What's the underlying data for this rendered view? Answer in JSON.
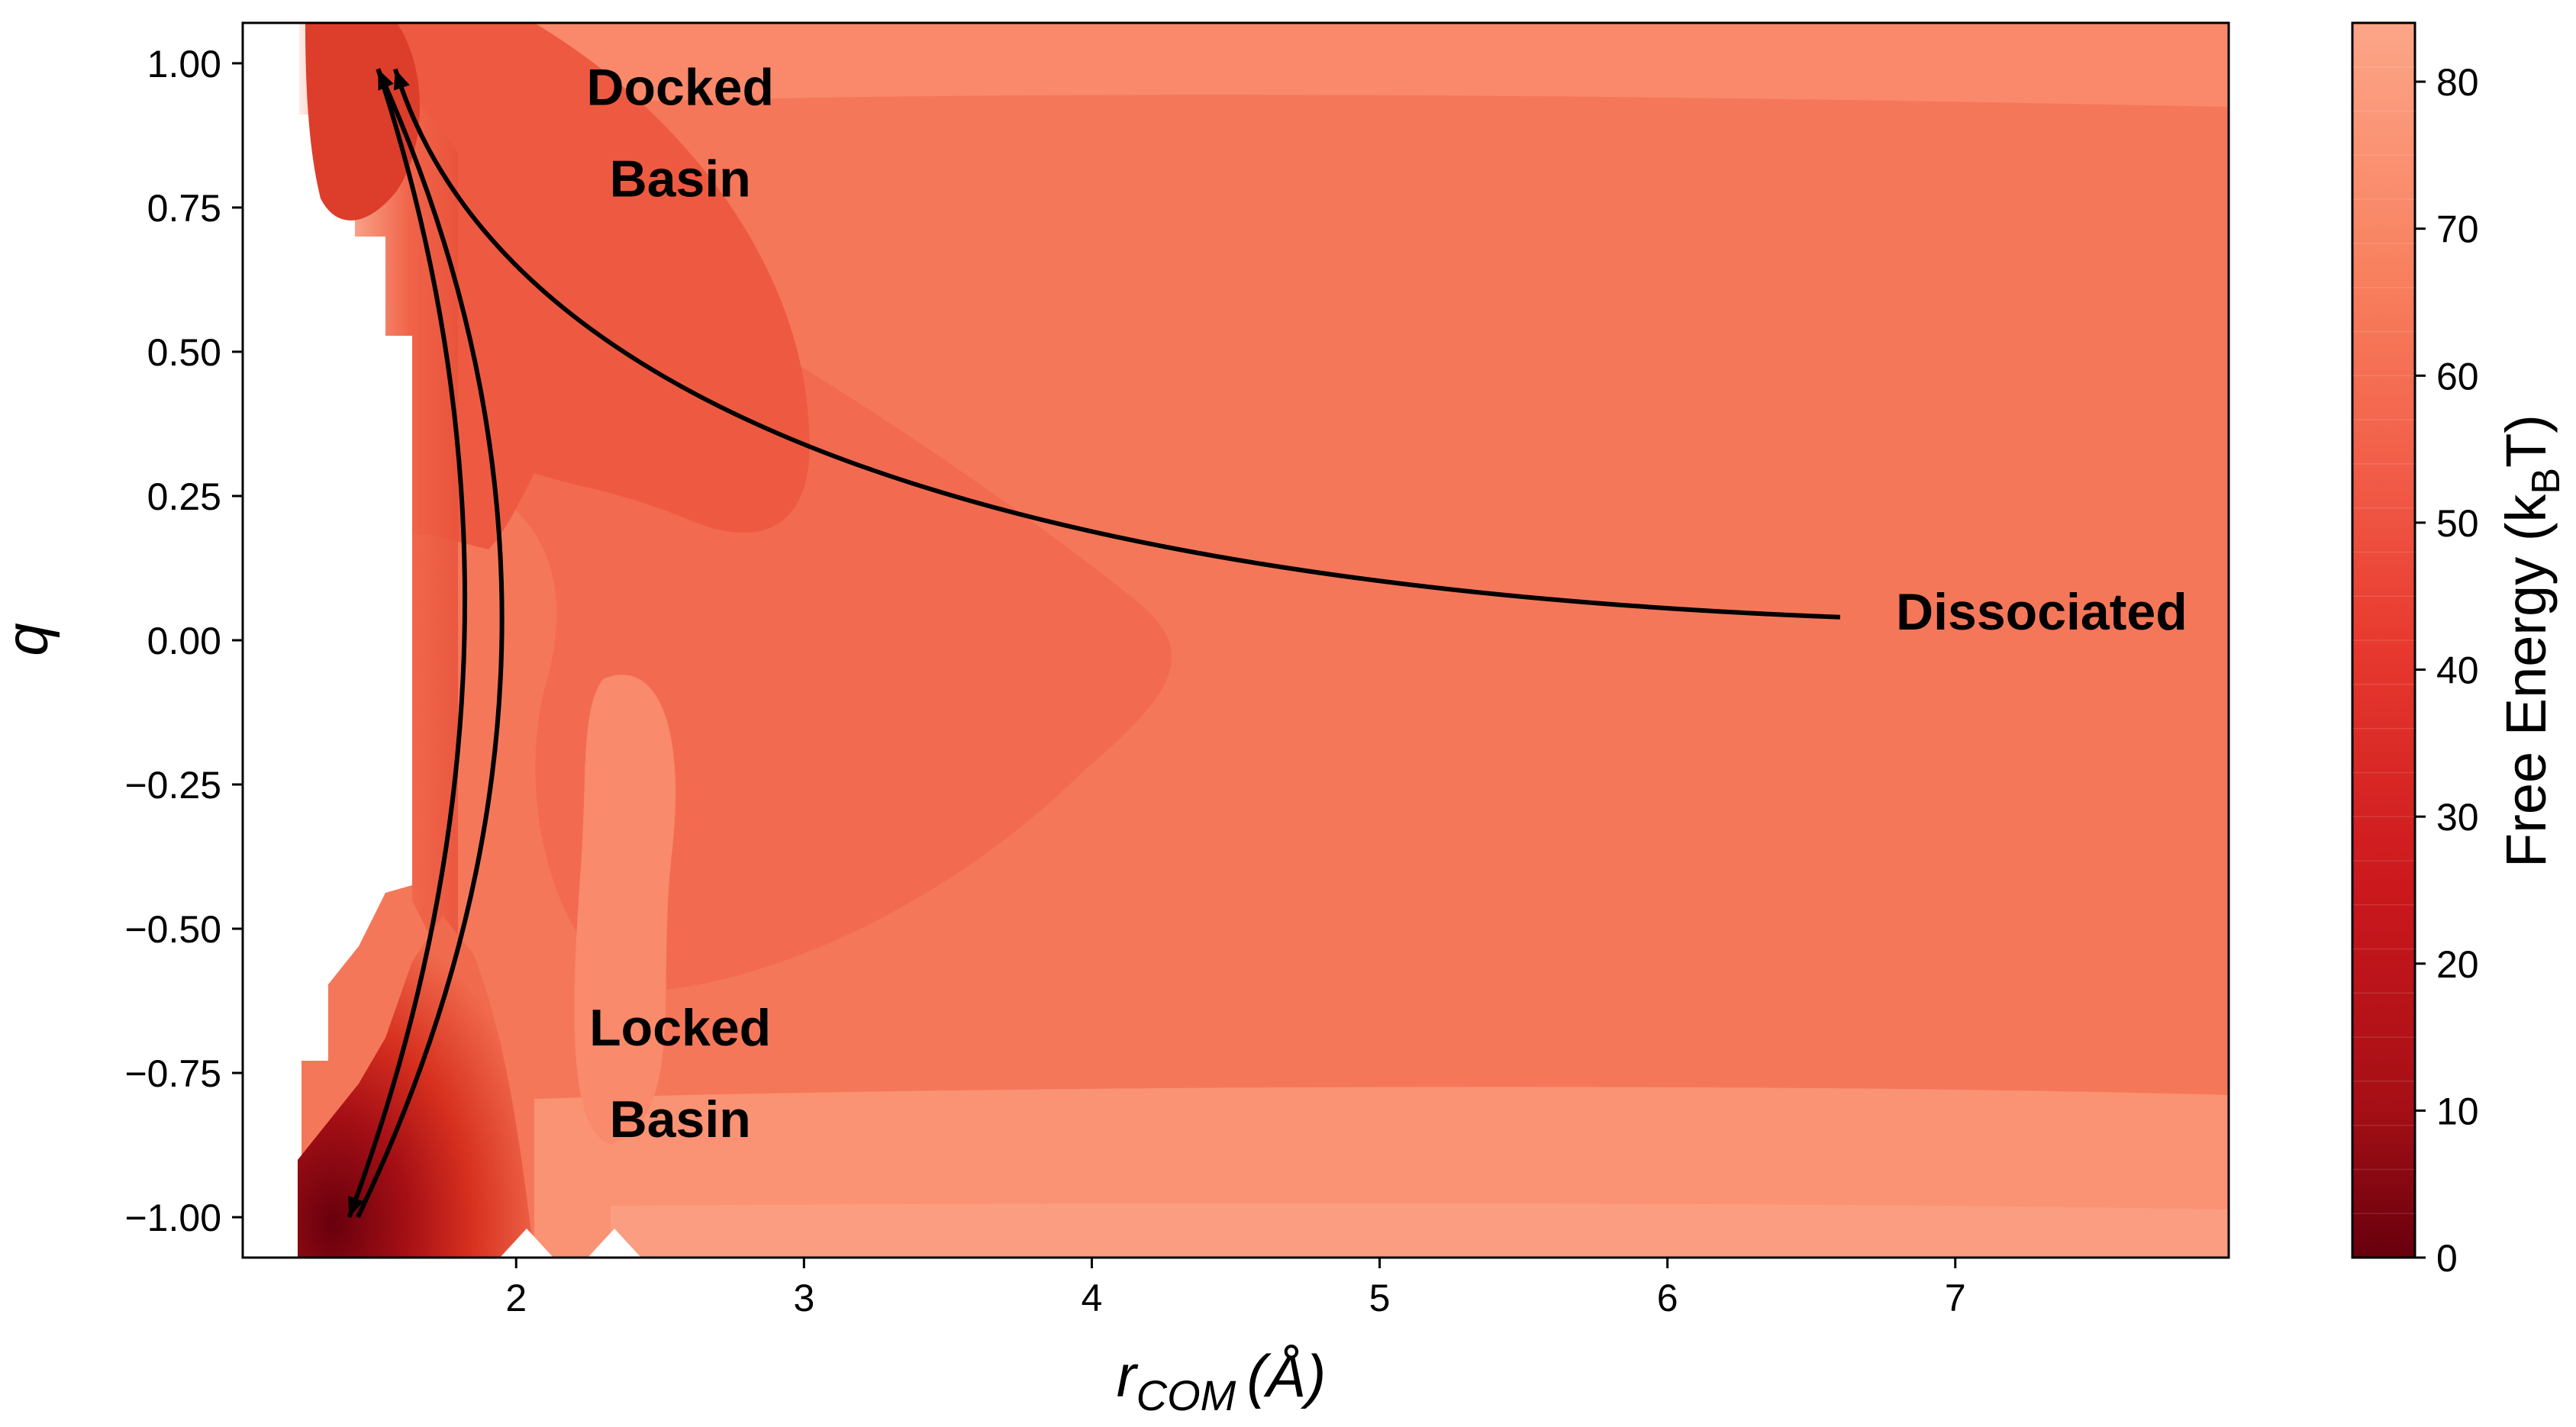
{
  "chart_data": {
    "type": "heatmap",
    "subtype": "filled-contour free energy landscape",
    "xlabel": {
      "main": "r",
      "subscript": "COM",
      "unit": "(Å)"
    },
    "ylabel": "q",
    "xlim": [
      1.05,
      7.95
    ],
    "ylim": [
      -1.07,
      1.07
    ],
    "x_ticks": [
      2,
      3,
      4,
      5,
      6,
      7
    ],
    "y_ticks": [
      "1.00",
      "0.75",
      "0.50",
      "0.25",
      "0.00",
      "−0.25",
      "−0.50",
      "−0.75",
      "−1.00"
    ],
    "y_tick_values": [
      1.0,
      0.75,
      0.5,
      0.25,
      0.0,
      -0.25,
      -0.5,
      -0.75,
      -1.0
    ],
    "colorbar": {
      "label": {
        "main": "Free Energy (k",
        "subscript": "B",
        "tail": "T)"
      },
      "range": [
        0,
        84
      ],
      "ticks": [
        0,
        10,
        20,
        30,
        40,
        50,
        60,
        70,
        80
      ],
      "colormap": "Reds_r",
      "color_low": "#67000d",
      "color_high": "#fca588"
    },
    "annotations": [
      {
        "lines": [
          "Docked",
          "Basin"
        ],
        "x": 2.57,
        "y": 0.88
      },
      {
        "lines": [
          "Locked",
          "Basin"
        ],
        "x": 2.57,
        "y": -0.75
      },
      {
        "lines": [
          "Dissociated"
        ],
        "x": 7.3,
        "y": 0.05
      }
    ],
    "pathways": [
      {
        "from": "Locked Basin",
        "to": "Docked Basin",
        "points": [
          [
            1.45,
            -1.0
          ],
          [
            1.95,
            0.0
          ],
          [
            1.52,
            0.99
          ]
        ]
      },
      {
        "from": "Docked Basin",
        "to": "Locked Basin",
        "points": [
          [
            1.52,
            0.99
          ],
          [
            1.82,
            0.0
          ],
          [
            1.42,
            -1.0
          ]
        ]
      },
      {
        "from": "Dissociated",
        "to": "Docked Basin",
        "points": [
          [
            6.6,
            0.04
          ],
          [
            3.1,
            0.32
          ],
          [
            1.58,
            0.99
          ]
        ]
      }
    ],
    "energy_regions": [
      {
        "name": "background plateau",
        "value": 66
      },
      {
        "name": "upper edge band",
        "value": 72
      },
      {
        "name": "lower edge band",
        "value": 74
      },
      {
        "name": "mid-q channel",
        "value": 60
      },
      {
        "name": "docked basin region",
        "value": 56
      },
      {
        "name": "locked basin core",
        "value": 4
      }
    ]
  }
}
